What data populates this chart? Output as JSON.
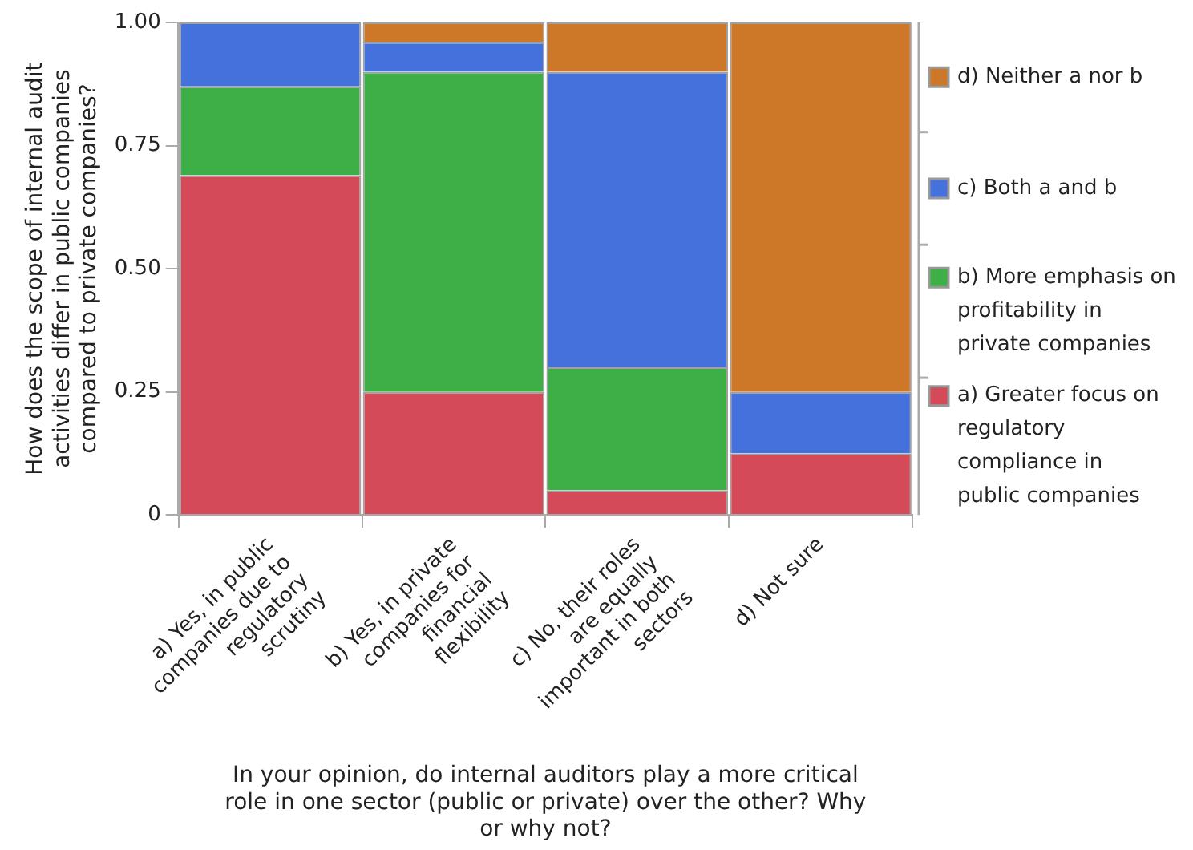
{
  "chart_data": {
    "type": "bar",
    "stacked": true,
    "xlabel": "In your opinion, do internal auditors play a more critical role in one sector (public or private) over the other? Why or why not?",
    "ylabel": "How does the scope of internal audit activities differ in public companies compared to private companies?",
    "categories": [
      "a) Yes, in public companies due to regulatory scrutiny",
      "b) Yes, in private companies for financial flexibility",
      "c) No, their roles are equally important in both sectors",
      "d) Not sure"
    ],
    "series": [
      {
        "name": "a) Greater focus on regulatory compliance in public companies",
        "color": "#d44a58",
        "values": [
          0.69,
          0.25,
          0.05,
          0.125
        ]
      },
      {
        "name": "b) More emphasis on profitability in private companies",
        "color": "#3eae47",
        "values": [
          0.18,
          0.65,
          0.25,
          0
        ]
      },
      {
        "name": "c) Both a and b",
        "color": "#4471dc",
        "values": [
          0.13,
          0.06,
          0.6,
          0.125
        ]
      },
      {
        "name": "d) Neither a nor b",
        "color": "#cc7828",
        "values": [
          0,
          0.04,
          0.1,
          0.75
        ]
      }
    ],
    "ylim": [
      0,
      1
    ],
    "yticks": [
      0,
      {
        "value": 0.25,
        "label": "0.25"
      },
      {
        "value": 0.5,
        "label": "0.50"
      },
      {
        "value": 0.75,
        "label": "0.75"
      },
      {
        "value": 1,
        "label": "1.00"
      }
    ],
    "grid": false,
    "legend": "right"
  }
}
